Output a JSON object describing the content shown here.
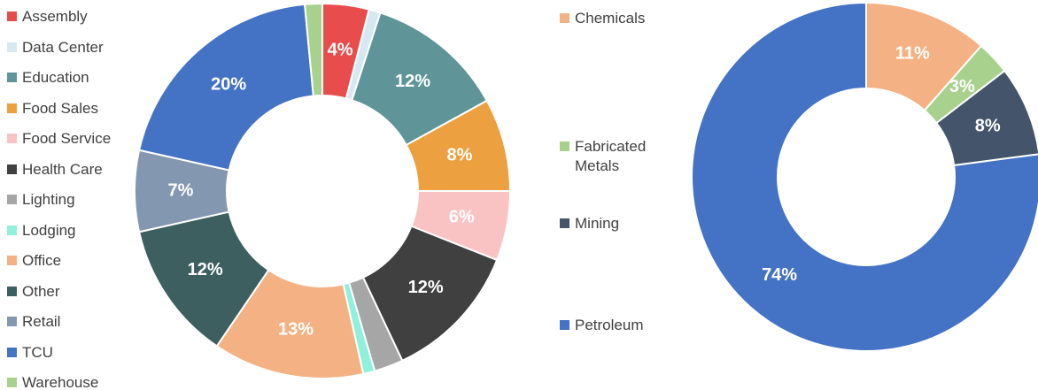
{
  "chart_data": [
    {
      "type": "donut",
      "categories": [
        "Assembly",
        "Data Center",
        "Education",
        "Food Sales",
        "Food Service",
        "Health Care",
        "Lighting",
        "Lodging",
        "Office",
        "Other",
        "Retail",
        "TCU",
        "Warehouse"
      ],
      "values": [
        4,
        1,
        12,
        8,
        6,
        12,
        2.5,
        1,
        13,
        12,
        7,
        20,
        1.5
      ],
      "value_labels": [
        "4%",
        null,
        "12%",
        "8%",
        "6%",
        "12%",
        null,
        null,
        "13%",
        "12%",
        "7%",
        "20%",
        null
      ],
      "colors": [
        "#e84c4c",
        "#d6e9f2",
        "#5f9598",
        "#eda040",
        "#f9c3c3",
        "#404040",
        "#a6a6a6",
        "#8ff0dc",
        "#f4b183",
        "#3e5f5f",
        "#8497b0",
        "#4472c4",
        "#a9d18e"
      ]
    },
    {
      "type": "donut",
      "categories": [
        "Chemicals",
        "Fabricated Metals",
        "Mining",
        "Petroleum"
      ],
      "values": [
        11,
        3,
        8,
        74
      ],
      "value_labels": [
        "11%",
        "3%",
        "8%",
        "74%"
      ],
      "colors": [
        "#f4b183",
        "#a9d18e",
        "#44546a",
        "#4472c4"
      ]
    }
  ]
}
